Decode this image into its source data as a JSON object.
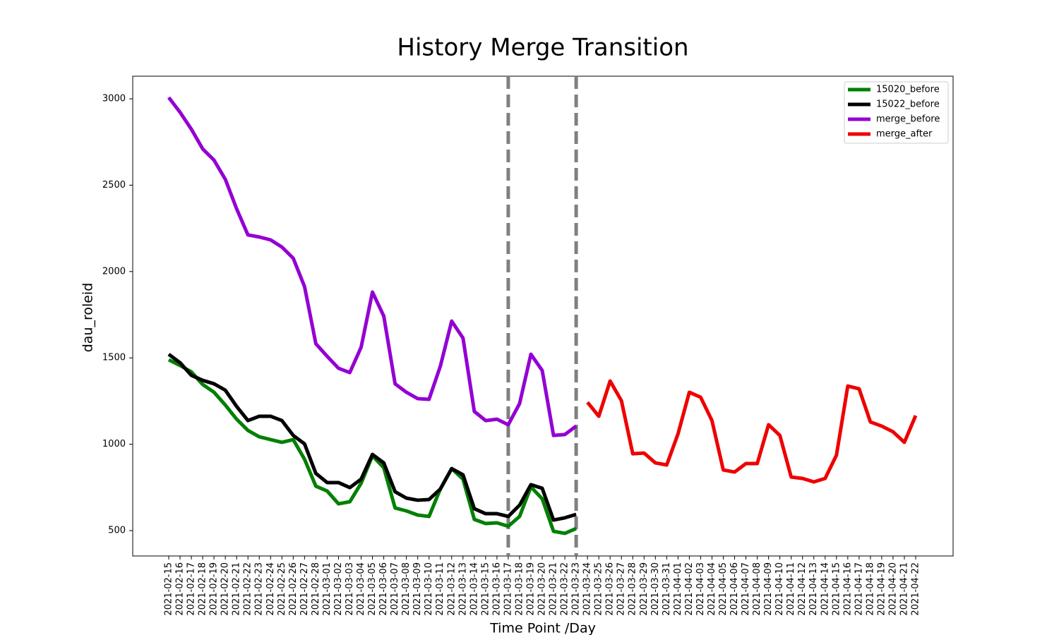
{
  "chart_data": {
    "type": "line",
    "title": "History Merge Transition",
    "x_label": "Time Point /Day",
    "y_label": "dau_roleid",
    "categories": [
      "2021-02-15",
      "2021-02-16",
      "2021-02-17",
      "2021-02-18",
      "2021-02-19",
      "2021-02-20",
      "2021-02-21",
      "2021-02-22",
      "2021-02-23",
      "2021-02-24",
      "2021-02-25",
      "2021-02-26",
      "2021-02-27",
      "2021-02-28",
      "2021-03-01",
      "2021-03-02",
      "2021-03-03",
      "2021-03-04",
      "2021-03-05",
      "2021-03-06",
      "2021-03-07",
      "2021-03-08",
      "2021-03-09",
      "2021-03-10",
      "2021-03-11",
      "2021-03-12",
      "2021-03-13",
      "2021-03-14",
      "2021-03-15",
      "2021-03-16",
      "2021-03-17",
      "2021-03-18",
      "2021-03-19",
      "2021-03-20",
      "2021-03-21",
      "2021-03-22",
      "2021-03-23",
      "2021-03-24",
      "2021-03-25",
      "2021-03-26",
      "2021-03-27",
      "2021-03-28",
      "2021-03-29",
      "2021-03-30",
      "2021-03-31",
      "2021-04-01",
      "2021-04-02",
      "2021-04-03",
      "2021-04-04",
      "2021-04-05",
      "2021-04-06",
      "2021-04-07",
      "2021-04-08",
      "2021-04-09",
      "2021-04-10",
      "2021-04-11",
      "2021-04-12",
      "2021-04-13",
      "2021-04-14",
      "2021-04-15",
      "2021-04-16",
      "2021-04-17",
      "2021-04-18",
      "2021-04-19",
      "2021-04-20",
      "2021-04-21",
      "2021-04-22"
    ],
    "series": [
      {
        "name": "15020_before",
        "color": "#008000",
        "values": [
          1489,
          1456,
          1419,
          1346,
          1301,
          1227,
          1145,
          1080,
          1043,
          1027,
          1011,
          1027,
          913,
          757,
          729,
          655,
          667,
          774,
          933,
          864,
          631,
          614,
          590,
          582,
          741,
          859,
          798,
          565,
          541,
          545,
          525,
          582,
          753,
          684,
          496,
          484,
          512,
          null,
          null,
          null,
          null,
          null,
          null,
          null,
          null,
          null,
          null,
          null,
          null,
          null,
          null,
          null,
          null,
          null,
          null,
          null,
          null,
          null,
          null,
          null,
          null,
          null,
          null,
          null,
          null,
          null,
          null
        ]
      },
      {
        "name": "15022_before",
        "color": "#000000",
        "values": [
          1521,
          1472,
          1399,
          1370,
          1350,
          1313,
          1219,
          1137,
          1162,
          1162,
          1137,
          1051,
          1002,
          831,
          778,
          778,
          749,
          798,
          941,
          892,
          725,
          688,
          676,
          680,
          741,
          859,
          823,
          627,
          598,
          598,
          582,
          647,
          766,
          745,
          561,
          574,
          594,
          null,
          null,
          null,
          null,
          null,
          null,
          null,
          null,
          null,
          null,
          null,
          null,
          null,
          null,
          null,
          null,
          null,
          null,
          null,
          null,
          null,
          null,
          null,
          null,
          null,
          null,
          null,
          null,
          null,
          null
        ]
      },
      {
        "name": "merge_before",
        "color": "#9400d3",
        "values": [
          3008,
          2922,
          2824,
          2710,
          2645,
          2534,
          2363,
          2212,
          2200,
          2183,
          2142,
          2077,
          1913,
          1582,
          1509,
          1440,
          1415,
          1562,
          1881,
          1742,
          1350,
          1301,
          1264,
          1260,
          1452,
          1713,
          1615,
          1190,
          1137,
          1145,
          1113,
          1235,
          1521,
          1427,
          1051,
          1056,
          1105,
          null,
          null,
          null,
          null,
          null,
          null,
          null,
          null,
          null,
          null,
          null,
          null,
          null,
          null,
          null,
          null,
          null,
          null,
          null,
          null,
          null,
          null,
          null,
          null,
          null,
          null,
          null,
          null,
          null,
          null
        ]
      },
      {
        "name": "merge_after",
        "color": "#ee0000",
        "values": [
          null,
          null,
          null,
          null,
          null,
          null,
          null,
          null,
          null,
          null,
          null,
          null,
          null,
          null,
          null,
          null,
          null,
          null,
          null,
          null,
          null,
          null,
          null,
          null,
          null,
          null,
          null,
          null,
          null,
          null,
          null,
          null,
          null,
          null,
          null,
          null,
          null,
          1243,
          1162,
          1366,
          1252,
          945,
          949,
          892,
          880,
          1060,
          1301,
          1272,
          1137,
          851,
          839,
          888,
          888,
          1113,
          1051,
          810,
          802,
          782,
          802,
          937,
          1337,
          1321,
          1129,
          1105,
          1072,
          1011,
          1166
        ]
      }
    ],
    "vlines": [
      "2021-03-17",
      "2021-03-23"
    ],
    "vline_color": "#808080",
    "ylim": [
      353,
      3131
    ],
    "yticks": [
      500,
      1000,
      1500,
      2000,
      2500,
      3000
    ],
    "grid": false,
    "legend": "upper right"
  }
}
